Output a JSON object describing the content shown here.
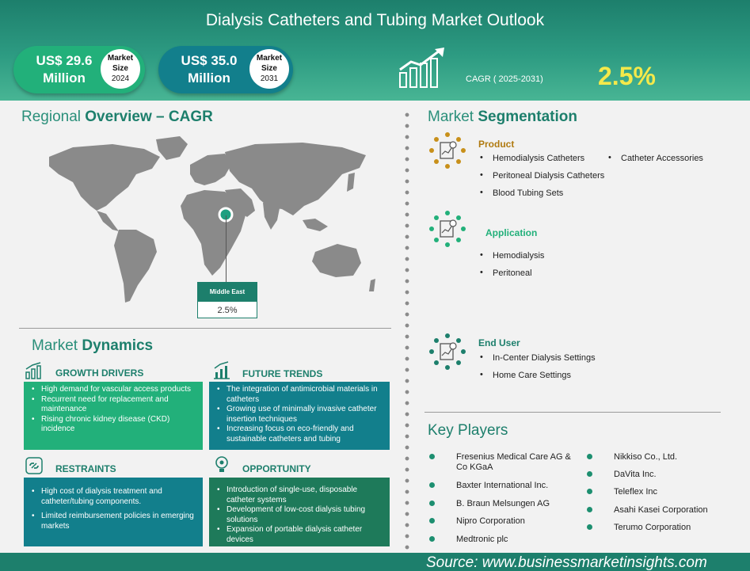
{
  "header": {
    "title": "Dialysis Catheters and Tubing Market Outlook",
    "size_2024": {
      "value_line1": "US$ 29.6",
      "value_line2": "Million",
      "badge_line1": "Market",
      "badge_line2": "Size",
      "badge_year": "2024"
    },
    "size_2031": {
      "value_line1": "US$ 35.0",
      "value_line2": "Million",
      "badge_line1": "Market",
      "badge_line2": "Size",
      "badge_year": "2031"
    },
    "cagr_label": "CAGR ( 2025-2031)",
    "cagr_value": "2.5%",
    "cagr_icon": "growth-chart-icon"
  },
  "regional": {
    "title_light": "Regional",
    "title_bold": "Overview – CAGR",
    "marker_region": "Middle East",
    "marker_value": "2.5%"
  },
  "dynamics": {
    "title_light": "Market",
    "title_bold": "Dynamics",
    "drivers": {
      "heading": "GROWTH DRIVERS",
      "icon": "bar-chart-icon",
      "items": [
        "High demand for vascular access products",
        "Recurrent need for replacement and maintenance",
        "Rising chronic kidney disease (CKD) incidence"
      ]
    },
    "trends": {
      "heading": "FUTURE TRENDS",
      "icon": "trend-chart-icon",
      "items": [
        "The integration of antimicrobial materials in catheters",
        "Growing use of minimally invasive catheter insertion techniques",
        "Increasing focus on eco-friendly and sustainable catheters and tubing"
      ]
    },
    "restraints": {
      "heading": "RESTRAINTS",
      "icon": "broken-link-icon",
      "items": [
        "High cost of dialysis treatment and catheter/tubing components.",
        "Limited reimbursement policies in emerging markets"
      ]
    },
    "opportunity": {
      "heading": "OPPORTUNITY",
      "icon": "lightbulb-gear-icon",
      "items": [
        "Introduction of single-use, disposable catheter systems",
        "Development of low-cost dialysis tubing solutions",
        "Expansion of portable dialysis catheter devices"
      ]
    }
  },
  "segmentation": {
    "title_light": "Market",
    "title_bold": "Segmentation",
    "product": {
      "heading": "Product",
      "color": "#b07a10",
      "items": [
        "Hemodialysis Catheters",
        "Catheter Accessories",
        "Peritoneal Dialysis Catheters",
        "Blood Tubing Sets"
      ]
    },
    "application": {
      "heading": "Application",
      "color": "#22b07a",
      "items": [
        "Hemodialysis",
        "Peritoneal"
      ]
    },
    "end_user": {
      "heading": "End User",
      "color": "#1d7f6c",
      "items": [
        "In-Center Dialysis Settings",
        "Home Care Settings"
      ]
    }
  },
  "key_players": {
    "title": "Key Players",
    "left": [
      "Fresenius Medical Care AG & Co KGaA",
      "Baxter International Inc.",
      "B. Braun Melsungen AG",
      "Nipro Corporation",
      "Medtronic plc"
    ],
    "right": [
      "Nikkiso Co., Ltd.",
      "DaVita Inc.",
      "Teleflex Inc",
      "Asahi Kasei Corporation",
      "Terumo Corporation"
    ]
  },
  "footer": {
    "source": "Source:  www.businessmarketinsights.com"
  }
}
